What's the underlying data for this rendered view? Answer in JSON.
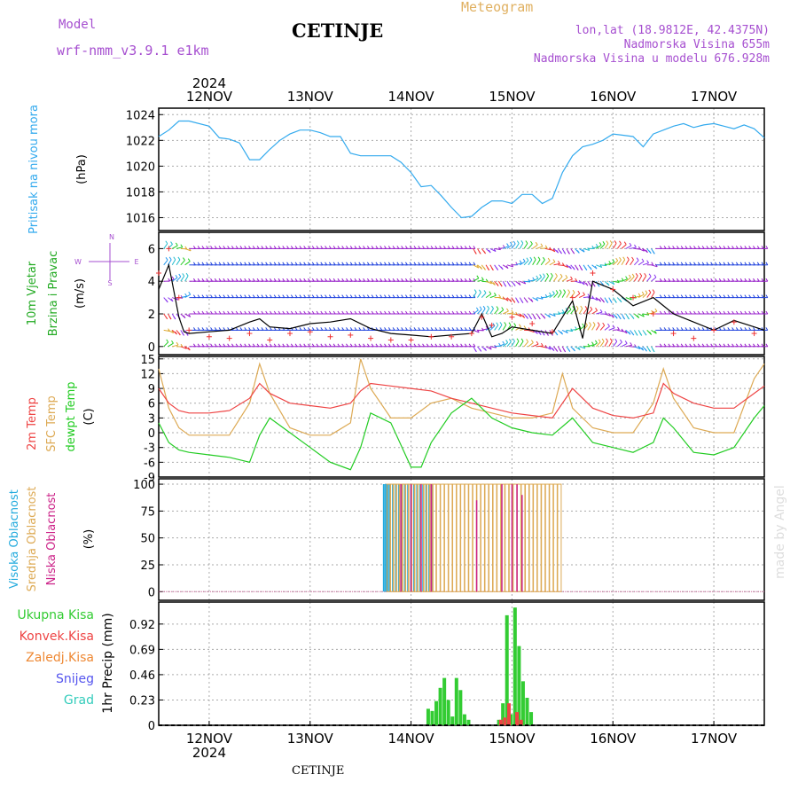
{
  "header": {
    "model_label": "Model",
    "model_name": "wrf-nmm_v3.9.1  e1km",
    "station": "CETINJE",
    "meteogram_label": "Meteogram",
    "info_lines": [
      "lon,lat (18.9812E, 42.4375N)",
      "Nadmorska Visina 655m",
      "Nadmorska Visina u modelu 676.928m"
    ],
    "footer": "CETINJE",
    "credit": "made by Angel"
  },
  "time_axis": {
    "year": "2024",
    "days": [
      "12NOV",
      "13NOV",
      "14NOV",
      "15NOV",
      "16NOV",
      "17NOV"
    ],
    "start_day": 11.5,
    "end_day": 17.5
  },
  "colors": {
    "pressure": "#33aaee",
    "t2m": "#ee4444",
    "sfc": "#ddaa55",
    "dewpt": "#22cc22",
    "cloud_high": "#22aadd",
    "cloud_mid": "#ddaa55",
    "cloud_low": "#cc2288",
    "precip_total": "#33cc33",
    "precip_conv": "#ee4444",
    "wind_speed": "#000000",
    "wind_gust": "#ee3333"
  },
  "chart_data": [
    {
      "type": "line",
      "panel": "pressure",
      "ylabel_lines": [
        "Pritisak na nivou mora",
        "(hPa)"
      ],
      "ylim": [
        1015,
        1024.5
      ],
      "yticks": [
        "1016",
        "1018",
        "1020",
        "1022",
        "1024"
      ],
      "series": [
        {
          "x": [
            11.5,
            11.6,
            11.7,
            11.8,
            12.0,
            12.1,
            12.2,
            12.3,
            12.4,
            12.5,
            12.6,
            12.7,
            12.8,
            12.9,
            13.0,
            13.1,
            13.2,
            13.3,
            13.4,
            13.5,
            13.6,
            13.7,
            13.8,
            13.9,
            14.0,
            14.1,
            14.2,
            14.3,
            14.4,
            14.5,
            14.6,
            14.7,
            14.8,
            14.9,
            15.0,
            15.1,
            15.2,
            15.3,
            15.4,
            15.5,
            15.6,
            15.7,
            15.8,
            15.9,
            16.0,
            16.1,
            16.2,
            16.3,
            16.4,
            16.5,
            16.6,
            16.7,
            16.8,
            16.9,
            17.0,
            17.1,
            17.2,
            17.3,
            17.4,
            17.5
          ],
          "values": [
            1022.3,
            1022.8,
            1023.5,
            1023.5,
            1023.1,
            1022.2,
            1022.1,
            1021.8,
            1020.5,
            1020.5,
            1021.3,
            1022.0,
            1022.5,
            1022.8,
            1022.8,
            1022.6,
            1022.3,
            1022.3,
            1021.0,
            1020.8,
            1020.8,
            1020.8,
            1020.8,
            1020.3,
            1019.5,
            1018.4,
            1018.5,
            1017.7,
            1016.8,
            1016.0,
            1016.1,
            1016.8,
            1017.3,
            1017.3,
            1017.1,
            1017.8,
            1017.8,
            1017.1,
            1017.5,
            1019.5,
            1020.8,
            1021.5,
            1021.7,
            1022.0,
            1022.5,
            1022.4,
            1022.3,
            1021.5,
            1022.5,
            1022.8,
            1023.1,
            1023.3,
            1023.0,
            1023.2,
            1023.3,
            1023.1,
            1022.9,
            1023.2,
            1022.9,
            1022.2
          ]
        }
      ]
    },
    {
      "type": "line",
      "panel": "wind",
      "ylabel_lines": [
        "10m Vjetar",
        "Brzina i Pravac",
        "(m/s)"
      ],
      "direction_key": [
        "N",
        "W",
        "E",
        "S"
      ],
      "ylim": [
        -0.5,
        7
      ],
      "yticks": [
        "0",
        "2",
        "4",
        "6"
      ],
      "series": [
        {
          "x": [
            11.5,
            11.6,
            11.7,
            11.75,
            11.8,
            12.0,
            12.2,
            12.4,
            12.5,
            12.6,
            12.8,
            13.0,
            13.2,
            13.4,
            13.6,
            13.8,
            14.0,
            14.2,
            14.4,
            14.6,
            14.7,
            14.8,
            14.9,
            15.0,
            15.2,
            15.4,
            15.6,
            15.7,
            15.8,
            16.0,
            16.2,
            16.4,
            16.6,
            16.8,
            17.0,
            17.2,
            17.4,
            17.5
          ],
          "values": [
            3.5,
            5.0,
            1.8,
            0.9,
            0.8,
            0.9,
            1.0,
            1.5,
            1.7,
            1.2,
            1.1,
            1.4,
            1.5,
            1.7,
            1.1,
            0.8,
            0.7,
            0.6,
            0.7,
            0.8,
            2.0,
            0.6,
            0.8,
            1.2,
            1.0,
            0.8,
            2.8,
            0.5,
            4.0,
            3.5,
            2.5,
            3.0,
            2.0,
            1.5,
            1.0,
            1.6,
            1.2,
            1.0
          ]
        },
        {
          "x": [
            11.5,
            11.6,
            11.7,
            11.8,
            12.0,
            12.2,
            12.4,
            12.6,
            12.8,
            13.0,
            13.2,
            13.4,
            13.6,
            13.8,
            14.0,
            14.2,
            14.4,
            14.6,
            14.7,
            14.8,
            15.0,
            15.2,
            15.4,
            15.6,
            15.8,
            16.0,
            16.2,
            16.4,
            16.6,
            16.8,
            17.0,
            17.2,
            17.4
          ],
          "values": [
            4.5,
            6.0,
            3.0,
            1.0,
            0.6,
            0.5,
            0.8,
            0.4,
            0.8,
            0.9,
            0.6,
            0.7,
            0.5,
            0.4,
            0.4,
            0.6,
            0.6,
            0.8,
            1.8,
            1.3,
            1.8,
            1.4,
            0.9,
            3.0,
            4.5,
            3.5,
            3.0,
            2.0,
            0.8,
            0.5,
            1.0,
            1.5,
            0.8
          ]
        }
      ]
    },
    {
      "type": "line",
      "panel": "temperature",
      "ylabel_lines": [
        "2m Temp",
        "SFC Temp",
        "dewpt Temp",
        "(C)"
      ],
      "ylim": [
        -9,
        15.5
      ],
      "yticks": [
        "-9",
        "-6",
        "-3",
        "0",
        "3",
        "6",
        "9",
        "12",
        "15"
      ],
      "series": [
        {
          "name": "2m Temp",
          "x": [
            11.5,
            11.6,
            11.7,
            11.8,
            12.0,
            12.2,
            12.4,
            12.5,
            12.6,
            12.8,
            13.0,
            13.2,
            13.4,
            13.5,
            13.6,
            13.8,
            14.0,
            14.2,
            14.4,
            14.6,
            14.8,
            15.0,
            15.2,
            15.4,
            15.6,
            15.8,
            16.0,
            16.2,
            16.4,
            16.5,
            16.6,
            16.8,
            17.0,
            17.2,
            17.4,
            17.5
          ],
          "values": [
            9,
            6,
            4.5,
            4,
            4,
            4.5,
            7,
            10,
            8,
            6,
            5.5,
            5,
            6,
            8.5,
            10,
            9.5,
            9,
            8.5,
            7,
            6,
            5,
            4,
            3.5,
            3,
            9,
            5,
            3.5,
            3,
            4,
            10,
            8,
            6,
            5,
            5,
            8,
            9.5
          ]
        },
        {
          "name": "SFC Temp",
          "x": [
            11.5,
            11.6,
            11.7,
            11.8,
            12.0,
            12.2,
            12.4,
            12.5,
            12.6,
            12.8,
            13.0,
            13.2,
            13.4,
            13.5,
            13.6,
            13.8,
            14.0,
            14.2,
            14.4,
            14.6,
            14.8,
            15.0,
            15.2,
            15.4,
            15.5,
            15.6,
            15.8,
            16.0,
            16.2,
            16.4,
            16.5,
            16.6,
            16.8,
            17.0,
            17.2,
            17.4,
            17.5
          ],
          "values": [
            13,
            5,
            1,
            -0.5,
            -0.5,
            -0.5,
            6,
            14,
            8,
            1,
            -0.5,
            -0.5,
            2,
            15,
            9,
            3,
            3,
            6,
            7,
            5,
            4,
            3,
            3,
            4,
            12,
            5,
            1,
            0,
            0,
            6,
            13,
            7,
            1,
            0,
            0,
            11,
            14
          ]
        },
        {
          "name": "dewpt Temp",
          "x": [
            11.5,
            11.6,
            11.7,
            11.8,
            12.0,
            12.2,
            12.4,
            12.5,
            12.6,
            12.8,
            13.0,
            13.2,
            13.4,
            13.5,
            13.6,
            13.8,
            14.0,
            14.1,
            14.2,
            14.4,
            14.6,
            14.8,
            15.0,
            15.2,
            15.4,
            15.6,
            15.8,
            16.0,
            16.2,
            16.4,
            16.5,
            16.6,
            16.8,
            17.0,
            17.2,
            17.4,
            17.5
          ],
          "values": [
            2,
            -2,
            -3.5,
            -4,
            -4.5,
            -5,
            -6,
            -0.5,
            3,
            0,
            -3,
            -6,
            -7.5,
            -3,
            4,
            2,
            -7,
            -7,
            -2,
            4,
            7,
            3,
            1,
            0,
            -0.5,
            3,
            -2,
            -3,
            -4,
            -2,
            3,
            1,
            -4,
            -4.5,
            -3,
            3,
            5.5
          ]
        }
      ]
    },
    {
      "type": "bar",
      "panel": "clouds",
      "ylabel_lines": [
        "Visoka Oblacnost",
        "Srednja Oblacnost",
        "Niska Oblacnost",
        "(%)"
      ],
      "ylim": [
        -8,
        105
      ],
      "yticks": [
        "0",
        "25",
        "50",
        "75",
        "100"
      ],
      "series": [
        {
          "name": "Visoka Oblacnost",
          "x": [
            13.73,
            13.75,
            13.77,
            13.79,
            13.82,
            13.85,
            13.88,
            13.91,
            13.94,
            13.97,
            14.0,
            14.03,
            14.06,
            14.09,
            14.12,
            14.15,
            14.18,
            14.21
          ],
          "values": [
            100,
            100,
            100,
            100,
            100,
            100,
            100,
            100,
            100,
            100,
            100,
            100,
            100,
            100,
            100,
            100,
            100,
            100
          ]
        },
        {
          "name": "Srednja Oblacnost",
          "x": [
            13.78,
            13.81,
            13.84,
            13.87,
            13.9,
            13.93,
            13.96,
            13.99,
            14.02,
            14.05,
            14.08,
            14.11,
            14.14,
            14.17,
            14.2,
            14.23,
            14.27,
            14.31,
            14.35,
            14.39,
            14.43,
            14.47,
            14.51,
            14.55,
            14.59,
            14.63,
            14.67,
            14.71,
            14.75,
            14.79,
            14.83,
            14.87,
            14.91,
            14.95,
            14.99,
            15.03,
            15.07,
            15.11,
            15.15,
            15.19,
            15.23,
            15.27,
            15.31,
            15.35,
            15.39,
            15.43,
            15.47
          ],
          "values": [
            100,
            100,
            100,
            100,
            100,
            100,
            100,
            100,
            100,
            100,
            100,
            100,
            100,
            100,
            100,
            100,
            100,
            100,
            100,
            100,
            100,
            100,
            100,
            100,
            100,
            100,
            100,
            100,
            100,
            100,
            100,
            100,
            100,
            100,
            100,
            100,
            100,
            100,
            100,
            100,
            100,
            100,
            100,
            100,
            100,
            100,
            100
          ]
        },
        {
          "name": "Niska Oblacnost",
          "x": [
            13.9,
            14.0,
            14.1,
            14.2,
            14.65,
            14.9,
            15.0,
            15.05,
            15.1
          ],
          "values": [
            100,
            100,
            100,
            100,
            85,
            100,
            100,
            100,
            90
          ]
        }
      ]
    },
    {
      "type": "bar",
      "panel": "precip",
      "ylabel_lines": [
        "1hr Precip (mm)"
      ],
      "legend": [
        "Ukupna Kisa",
        "Konvek.Kisa",
        "Zaledj.Kisa",
        "Snijeg",
        "Grad"
      ],
      "ylim": [
        0,
        1.12
      ],
      "yticks": [
        "0",
        "0.23",
        "0.46",
        "0.69",
        "0.92"
      ],
      "series": [
        {
          "name": "Ukupna Kisa",
          "x": [
            14.17,
            14.21,
            14.25,
            14.29,
            14.33,
            14.37,
            14.41,
            14.45,
            14.49,
            14.53,
            14.57,
            14.87,
            14.91,
            14.95,
            14.99,
            15.03,
            15.07,
            15.11,
            15.15,
            15.19
          ],
          "values": [
            0.15,
            0.13,
            0.22,
            0.34,
            0.43,
            0.23,
            0.08,
            0.43,
            0.32,
            0.1,
            0.05,
            0.05,
            0.2,
            1.0,
            0.1,
            1.07,
            0.72,
            0.4,
            0.25,
            0.12
          ]
        },
        {
          "name": "Konvek.Kisa",
          "x": [
            14.89,
            14.93,
            14.97,
            15.05,
            15.09
          ],
          "values": [
            0.05,
            0.07,
            0.2,
            0.12,
            0.05
          ]
        }
      ]
    }
  ]
}
